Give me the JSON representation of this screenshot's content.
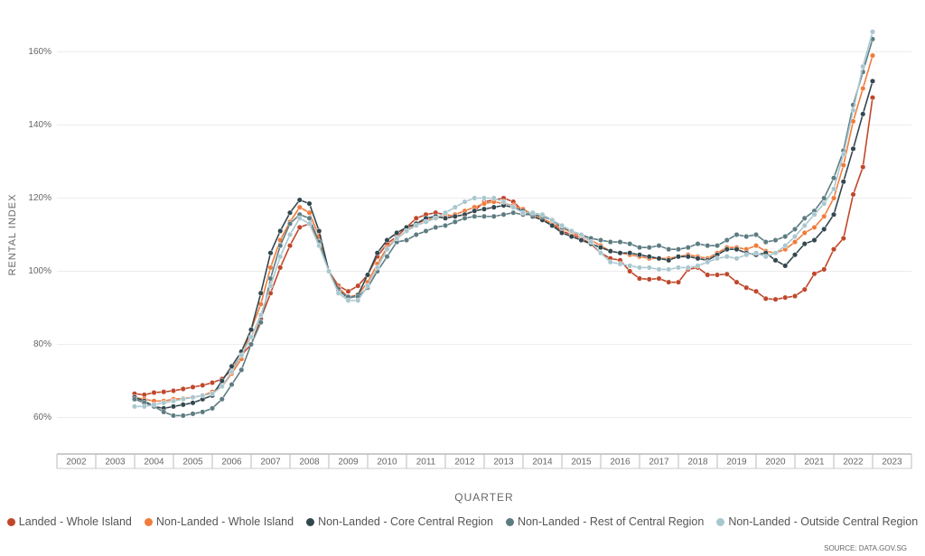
{
  "chart_data": {
    "type": "line",
    "x_label": "QUARTER",
    "y_label": "RENTAL INDEX",
    "source": "SOURCE: DATA.GOV.SG",
    "x": [
      2004,
      2004.25,
      2004.5,
      2004.75,
      2005,
      2005.25,
      2005.5,
      2005.75,
      2006,
      2006.25,
      2006.5,
      2006.75,
      2007,
      2007.25,
      2007.5,
      2007.75,
      2008,
      2008.25,
      2008.5,
      2008.75,
      2009,
      2009.25,
      2009.5,
      2009.75,
      2010,
      2010.25,
      2010.5,
      2010.75,
      2011,
      2011.25,
      2011.5,
      2011.75,
      2012,
      2012.25,
      2012.5,
      2012.75,
      2013,
      2013.25,
      2013.5,
      2013.75,
      2014,
      2014.25,
      2014.5,
      2014.75,
      2015,
      2015.25,
      2015.5,
      2015.75,
      2016,
      2016.25,
      2016.5,
      2016.75,
      2017,
      2017.25,
      2017.5,
      2017.75,
      2018,
      2018.25,
      2018.5,
      2018.75,
      2019,
      2019.25,
      2019.5,
      2019.75,
      2020,
      2020.25,
      2020.5,
      2020.75,
      2021,
      2021.25,
      2021.5,
      2021.75,
      2022,
      2022.25,
      2022.5,
      2022.75,
      2023
    ],
    "xlim": [
      2002,
      2024
    ],
    "xticks": [
      2002,
      2003,
      2004,
      2005,
      2006,
      2007,
      2008,
      2009,
      2010,
      2011,
      2012,
      2013,
      2014,
      2015,
      2016,
      2017,
      2018,
      2019,
      2020,
      2021,
      2022,
      2023
    ],
    "ylim": [
      50,
      170
    ],
    "yticks": [
      {
        "value": 60,
        "label": "60%"
      },
      {
        "value": 80,
        "label": "80%"
      },
      {
        "value": 100,
        "label": "100%"
      },
      {
        "value": 120,
        "label": "120%"
      },
      {
        "value": 140,
        "label": "140%"
      },
      {
        "value": 160,
        "label": "160%"
      }
    ],
    "grid": true,
    "legend": "bottom",
    "series": [
      {
        "name": "Landed - Whole Island",
        "color": "#c0472b",
        "values": [
          66.5,
          66.2,
          66.8,
          67,
          67.3,
          67.8,
          68.3,
          68.8,
          69.5,
          70.5,
          73,
          77,
          80,
          87,
          94,
          101,
          107,
          112,
          113,
          108,
          100,
          96,
          94.5,
          96,
          99,
          104,
          107.5,
          109.5,
          112,
          114.5,
          115.5,
          116,
          115.5,
          115,
          115.5,
          116.5,
          119,
          119.5,
          120,
          119,
          116.5,
          115,
          114,
          113,
          111,
          110,
          109,
          107.5,
          105,
          103.5,
          103,
          100,
          98,
          97.8,
          98,
          97,
          97,
          100.5,
          101,
          99,
          99,
          99.2,
          97,
          95.5,
          94.5,
          92.5,
          92.3,
          92.8,
          93.2,
          95,
          99.3,
          100.5,
          106,
          109,
          121,
          128.5,
          147.5
        ]
      },
      {
        "name": "Non-Landed - Whole Island",
        "color": "#f07c3c",
        "values": [
          65.5,
          65,
          64.5,
          64.5,
          65,
          65.2,
          65.5,
          66,
          67,
          68.5,
          72,
          76,
          84,
          91,
          101,
          108.5,
          113.5,
          117.5,
          116,
          109.5,
          100,
          95.5,
          93,
          93.5,
          97,
          102,
          106.5,
          109,
          111,
          113,
          114,
          114.5,
          115,
          115.5,
          116.5,
          117.5,
          118.5,
          119,
          118.5,
          118,
          117,
          115.5,
          114.5,
          113,
          112,
          110.5,
          109.5,
          108.5,
          107,
          105.5,
          105,
          104.5,
          104,
          103.5,
          103.5,
          103.5,
          104,
          104.5,
          104,
          103.5,
          105,
          106.5,
          106.5,
          106,
          107,
          105.5,
          105,
          106,
          108,
          110.5,
          112,
          115,
          120,
          129,
          141,
          150,
          159
        ]
      },
      {
        "name": "Non-Landed - Core Central Region",
        "color": "#33474f",
        "values": [
          65.5,
          64.5,
          63,
          62.5,
          63,
          63.5,
          64,
          65,
          66,
          70,
          74,
          78,
          84,
          94,
          105,
          111,
          116,
          119.5,
          118.5,
          111,
          100,
          95,
          92.5,
          93.5,
          99,
          105,
          108.5,
          110.5,
          112,
          113,
          114.5,
          115,
          114.5,
          115,
          115.5,
          116.5,
          117,
          117.5,
          118,
          117.5,
          116.5,
          115,
          114,
          112.5,
          110.5,
          109.5,
          108.5,
          107.5,
          106.5,
          105.5,
          105,
          105,
          104.5,
          104,
          103.5,
          103,
          104,
          104,
          103.5,
          103,
          104.5,
          106,
          106,
          105,
          104.5,
          105,
          103,
          101.5,
          104.5,
          107.5,
          108.5,
          111.5,
          115.5,
          124.5,
          133.5,
          143,
          152
        ]
      },
      {
        "name": "Non-Landed - Rest of Central Region",
        "color": "#5d7c82",
        "values": [
          65,
          64,
          63,
          61.5,
          60.5,
          60.5,
          61,
          61.5,
          62.5,
          65,
          69,
          73,
          80,
          86,
          98,
          107,
          113,
          115.5,
          114.5,
          108,
          100,
          94.5,
          93,
          93,
          95.5,
          100,
          104,
          108,
          108.5,
          110,
          111,
          112,
          112.5,
          113.5,
          114.5,
          115,
          115,
          115,
          115.5,
          116,
          115.5,
          115.5,
          115,
          114,
          112,
          111,
          110,
          109,
          108.5,
          108,
          108,
          107.5,
          106.5,
          106.5,
          107,
          106,
          106,
          106.5,
          107.5,
          107,
          107,
          108.5,
          110,
          109.5,
          110,
          108,
          108.5,
          109.5,
          111.5,
          114.5,
          116.5,
          120,
          125.5,
          133,
          145.5,
          154.5,
          163.5
        ]
      },
      {
        "name": "Non-Landed - Outside Central Region",
        "color": "#a9c7cf",
        "values": [
          63,
          63,
          63.5,
          64,
          64.5,
          65,
          65.5,
          66,
          66.5,
          68.5,
          72.5,
          77,
          82,
          88,
          96,
          104,
          110,
          114.5,
          113,
          107,
          100,
          94,
          92,
          92,
          96,
          101,
          106,
          109,
          111,
          112.5,
          113.5,
          114.5,
          116,
          117.5,
          119,
          120,
          120,
          120,
          119,
          117.5,
          116,
          116,
          115.5,
          114,
          112.5,
          111,
          110,
          108,
          105,
          102.5,
          102,
          101.5,
          101,
          101,
          100.5,
          100.5,
          101,
          101,
          101.5,
          102.5,
          103.5,
          104,
          103.5,
          104.5,
          105,
          104,
          105,
          107,
          109.5,
          112.5,
          115.5,
          118.5,
          122.5,
          132,
          144,
          156,
          165.5
        ]
      }
    ]
  }
}
